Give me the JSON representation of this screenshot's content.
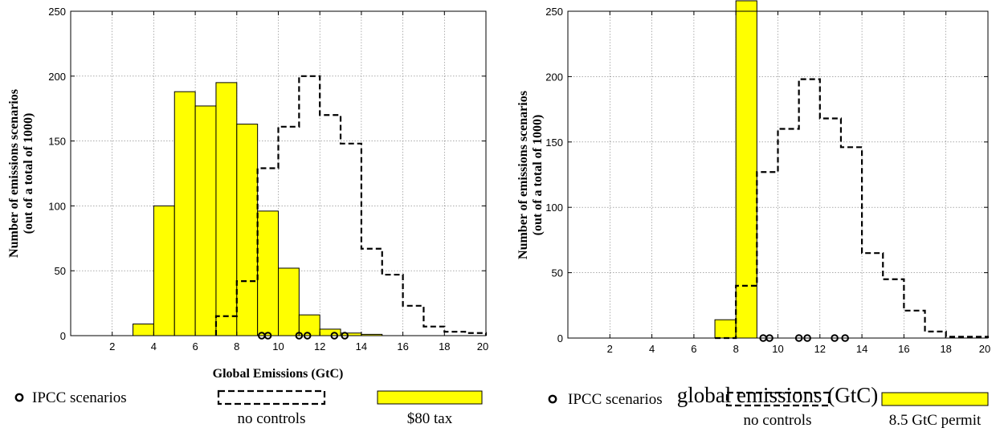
{
  "chart_data": [
    {
      "type": "bar",
      "panel": "left",
      "xlabel": "Global Emissions (GtC)",
      "ylabel": [
        "Number of emissions scenarios",
        "(out of a total of 1000)"
      ],
      "xlim": [
        0,
        20
      ],
      "ylim": [
        0,
        250
      ],
      "xticks": [
        "2",
        "4",
        "6",
        "8",
        "10",
        "12",
        "14",
        "16",
        "18",
        "20"
      ],
      "yticks": [
        "0",
        "50",
        "100",
        "150",
        "200",
        "250"
      ],
      "grid": true,
      "series": [
        {
          "name": "$80 tax",
          "style": "filled-bar",
          "color": "#ffff00",
          "bins_start": [
            0,
            1,
            2,
            3,
            4,
            5,
            6,
            7,
            8,
            9,
            10,
            11,
            12,
            13,
            14,
            15,
            16,
            17,
            18,
            19
          ],
          "values": [
            0,
            0,
            0,
            9,
            100,
            188,
            177,
            195,
            163,
            96,
            52,
            16,
            5,
            2,
            1,
            0,
            0,
            0,
            0,
            0
          ]
        },
        {
          "name": "no controls",
          "style": "dashed-step",
          "bins_start": [
            7,
            8,
            9,
            10,
            11,
            12,
            13,
            14,
            15,
            16,
            17,
            18,
            19
          ],
          "values": [
            15,
            42,
            129,
            161,
            200,
            170,
            148,
            67,
            47,
            23,
            7,
            3,
            2
          ]
        },
        {
          "name": "IPCC scenarios",
          "style": "circle-marker",
          "x": [
            9.2,
            9.5,
            11.0,
            11.4,
            12.7,
            13.2
          ],
          "y": [
            0,
            0,
            0,
            0,
            0,
            0
          ]
        }
      ],
      "legend": [
        {
          "symbol": "circle",
          "label": "IPCC scenarios"
        },
        {
          "symbol": "dashed-box",
          "label": "no controls"
        },
        {
          "symbol": "yellow-box",
          "label": "$80 tax"
        }
      ]
    },
    {
      "type": "bar",
      "panel": "right",
      "xlabel": "global emissions (GtC)",
      "ylabel": [
        "Number of emissions scenarios",
        "(out of a total of 1000)"
      ],
      "xlim": [
        0,
        20
      ],
      "ylim": [
        0,
        250
      ],
      "xticks": [
        "2",
        "4",
        "6",
        "8",
        "10",
        "12",
        "14",
        "16",
        "18",
        "20"
      ],
      "yticks": [
        "0",
        "50",
        "100",
        "150",
        "200",
        "250"
      ],
      "grid": true,
      "series": [
        {
          "name": "8.5 GtC permit",
          "style": "filled-bar",
          "color": "#ffff00",
          "bins_start": [
            7,
            8
          ],
          "values": [
            14,
            258
          ]
        },
        {
          "name": "no controls",
          "style": "dashed-step",
          "bins_start": [
            7,
            8,
            9,
            10,
            11,
            12,
            13,
            14,
            15,
            16,
            17,
            18,
            19
          ],
          "values": [
            0,
            40,
            127,
            160,
            198,
            168,
            146,
            65,
            45,
            21,
            5,
            1,
            1
          ]
        },
        {
          "name": "IPCC scenarios",
          "style": "circle-marker",
          "x": [
            9.3,
            9.6,
            11.0,
            11.4,
            12.7,
            13.2
          ],
          "y": [
            0,
            0,
            0,
            0,
            0,
            0
          ]
        }
      ],
      "legend": [
        {
          "symbol": "circle",
          "label": "IPCC scenarios"
        },
        {
          "symbol": "dashed-box",
          "label": "no controls"
        },
        {
          "symbol": "yellow-box",
          "label": "8.5 GtC permit"
        }
      ]
    }
  ]
}
